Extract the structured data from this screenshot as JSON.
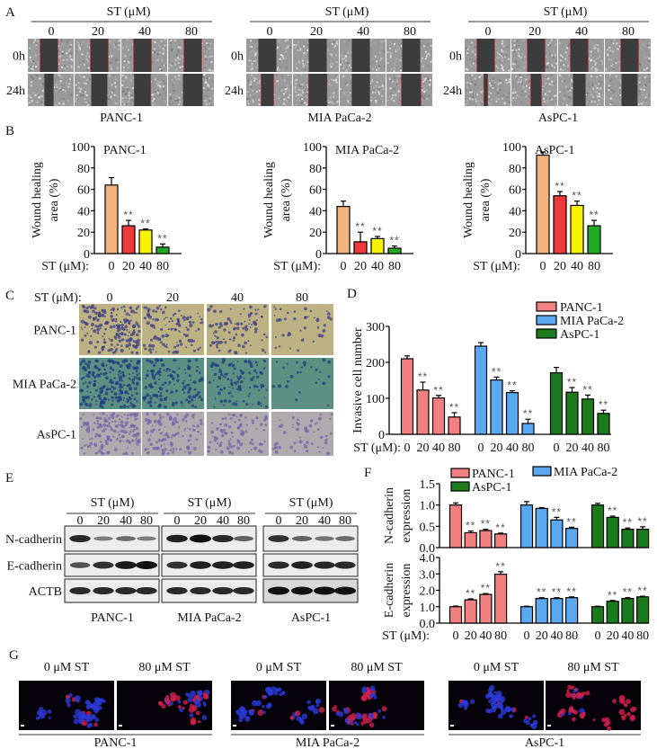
{
  "panel_labels": {
    "a": "A",
    "b": "B",
    "c": "C",
    "d": "D",
    "e": "E",
    "f": "F",
    "g": "G"
  },
  "panel_a": {
    "header": "ST (μM)",
    "doses": [
      "0",
      "20",
      "40",
      "80"
    ],
    "rows": [
      "0h",
      "24h"
    ],
    "cell_lines": [
      "PANC-1",
      "MIA PaCa-2",
      "AsPC-1"
    ]
  },
  "panel_c": {
    "st_label": "ST (μM):",
    "doses": [
      "0",
      "20",
      "40",
      "80"
    ],
    "rows": [
      "PANC-1",
      "MIA PaCa-2",
      "AsPC-1"
    ]
  },
  "panel_e": {
    "header": "ST (μM)",
    "doses": [
      "0",
      "20",
      "40",
      "80"
    ],
    "proteins": [
      "N-cadherin",
      "E-cadherin",
      "ACTB"
    ],
    "cell_lines": [
      "PANC-1",
      "MIA PaCa-2",
      "AsPC-1"
    ],
    "band_intensity": [
      [
        [
          0.85,
          0.35,
          0.45,
          0.35
        ],
        [
          0.6,
          0.8,
          0.95,
          1.0
        ],
        [
          0.85,
          0.85,
          0.85,
          0.85
        ]
      ],
      [
        [
          0.9,
          1.0,
          0.85,
          0.5
        ],
        [
          0.8,
          0.9,
          0.9,
          0.9
        ],
        [
          0.85,
          0.85,
          0.85,
          0.85
        ]
      ],
      [
        [
          0.8,
          0.5,
          0.4,
          0.45
        ],
        [
          0.85,
          0.9,
          0.85,
          0.85
        ],
        [
          1.0,
          1.0,
          1.0,
          1.0
        ]
      ]
    ]
  },
  "panel_g": {
    "conditions": [
      "0 μM ST",
      "80 μM ST"
    ],
    "cell_lines": [
      "PANC-1",
      "MIA PaCa-2",
      "AsPC-1"
    ]
  },
  "colors": {
    "dose_0": "#f2b47e",
    "dose_20": "#ee3a3a",
    "dose_40": "#f7f200",
    "dose_80": "#22aa22",
    "panc1": "#f28080",
    "mia_paca2": "#5aa8f0",
    "aspc1": "#1b7a1b",
    "significance": "#555555"
  },
  "chart_data": [
    {
      "type": "bar",
      "title": "PANC-1",
      "ylabel_lines": [
        "Wound healing",
        "area (%)"
      ],
      "xlabel": "ST (μM):",
      "categories": [
        "0",
        "20",
        "40",
        "80"
      ],
      "values": [
        64,
        26,
        22,
        6
      ],
      "errors": [
        7,
        5,
        1,
        3
      ],
      "significance": [
        "",
        "**",
        "**",
        "**"
      ],
      "bar_colors": [
        "#f2b47e",
        "#ee3a3a",
        "#f7f200",
        "#22aa22"
      ],
      "ylim": [
        0,
        100
      ],
      "yticks": [
        "0",
        "20",
        "40",
        "60",
        "80",
        "100"
      ],
      "grid": false
    },
    {
      "type": "bar",
      "title": "MIA PaCa-2",
      "ylabel_lines": [
        "Wound healing",
        "area (%)"
      ],
      "xlabel": "ST (μM):",
      "categories": [
        "0",
        "20",
        "40",
        "80"
      ],
      "values": [
        44,
        11,
        14,
        5
      ],
      "errors": [
        5,
        9,
        2,
        2
      ],
      "significance": [
        "",
        "**",
        "**",
        "**"
      ],
      "bar_colors": [
        "#f2b47e",
        "#ee3a3a",
        "#f7f200",
        "#22aa22"
      ],
      "ylim": [
        0,
        100
      ],
      "yticks": [
        "0",
        "20",
        "40",
        "60",
        "80",
        "100"
      ],
      "grid": false
    },
    {
      "type": "bar",
      "title": "AsPC-1",
      "ylabel_lines": [
        "Wound healing",
        "area (%)"
      ],
      "xlabel": "ST (μM):",
      "categories": [
        "0",
        "20",
        "40",
        "80"
      ],
      "values": [
        92,
        54,
        45,
        26
      ],
      "errors": [
        3,
        4,
        4,
        5
      ],
      "significance": [
        "",
        "**",
        "**",
        "**"
      ],
      "bar_colors": [
        "#f2b47e",
        "#ee3a3a",
        "#f7f200",
        "#22aa22"
      ],
      "ylim": [
        0,
        100
      ],
      "yticks": [
        "0",
        "20",
        "40",
        "60",
        "80",
        "100"
      ],
      "grid": false
    },
    {
      "type": "bar",
      "ylabel_lines": [
        "Invasive cell number"
      ],
      "xlabel": "ST (μM):",
      "categories": [
        "0",
        "20",
        "40",
        "80"
      ],
      "series": [
        {
          "name": "PANC-1",
          "color": "#f28080",
          "values": [
            210,
            123,
            101,
            48
          ],
          "errors": [
            8,
            22,
            7,
            12
          ],
          "significance": [
            "",
            "**",
            "**",
            "**"
          ]
        },
        {
          "name": "MIA PaCa-2",
          "color": "#5aa8f0",
          "values": [
            245,
            151,
            116,
            30
          ],
          "errors": [
            10,
            8,
            5,
            12
          ],
          "significance": [
            "",
            "**",
            "**",
            "**"
          ]
        },
        {
          "name": "AsPC-1",
          "color": "#1b7a1b",
          "values": [
            171,
            117,
            98,
            58
          ],
          "errors": [
            15,
            13,
            11,
            9
          ],
          "significance": [
            "",
            "**",
            "**",
            "**"
          ]
        }
      ],
      "ylim": [
        0,
        300
      ],
      "yticks": [
        "0",
        "100",
        "200",
        "300"
      ],
      "grid": false,
      "legend": "top-right"
    },
    {
      "type": "bar",
      "ylabel_lines": [
        "N-cadherin",
        "expression"
      ],
      "categories": [
        "0",
        "20",
        "40",
        "80"
      ],
      "series": [
        {
          "name": "PANC-1",
          "color": "#f28080",
          "values": [
            1.0,
            0.35,
            0.4,
            0.32
          ],
          "errors": [
            0.05,
            0.04,
            0.03,
            0.02
          ],
          "significance": [
            "",
            "**",
            "**",
            "**"
          ]
        },
        {
          "name": "MIA PaCa-2",
          "color": "#5aa8f0",
          "values": [
            1.0,
            0.92,
            0.65,
            0.45
          ],
          "errors": [
            0.08,
            0.02,
            0.06,
            0.03
          ],
          "significance": [
            "",
            "",
            "**",
            "**"
          ]
        },
        {
          "name": "AsPC-1",
          "color": "#1b7a1b",
          "values": [
            1.0,
            0.71,
            0.43,
            0.43
          ],
          "errors": [
            0.04,
            0.03,
            0.03,
            0.06
          ],
          "significance": [
            "",
            "**",
            "**",
            "**"
          ]
        }
      ],
      "ylim": [
        0,
        1.5
      ],
      "yticks": [
        "0.0",
        "0.5",
        "1.0",
        "1.5"
      ],
      "grid": false,
      "legend": "top"
    },
    {
      "type": "bar",
      "ylabel_lines": [
        "E-cadherin",
        "expression"
      ],
      "xlabel": "ST (μM):",
      "categories": [
        "0",
        "20",
        "40",
        "80"
      ],
      "series": [
        {
          "name": "PANC-1",
          "color": "#f28080",
          "values": [
            1.0,
            1.42,
            1.75,
            2.98
          ],
          "errors": [
            0.04,
            0.06,
            0.05,
            0.15
          ],
          "significance": [
            "",
            "**",
            "**",
            "**"
          ]
        },
        {
          "name": "MIA PaCa-2",
          "color": "#5aa8f0",
          "values": [
            1.0,
            1.5,
            1.5,
            1.55
          ],
          "errors": [
            0.03,
            0.05,
            0.05,
            0.05
          ],
          "significance": [
            "",
            "**",
            "**",
            "**"
          ]
        },
        {
          "name": "AsPC-1",
          "color": "#1b7a1b",
          "values": [
            1.0,
            1.33,
            1.5,
            1.6
          ],
          "errors": [
            0.03,
            0.05,
            0.05,
            0.04
          ],
          "significance": [
            "",
            "**",
            "**",
            "**"
          ]
        }
      ],
      "ylim": [
        0,
        4.0
      ],
      "yticks": [
        "0.0",
        "1.0",
        "2.0",
        "3.0",
        "4.0"
      ],
      "grid": false
    }
  ]
}
